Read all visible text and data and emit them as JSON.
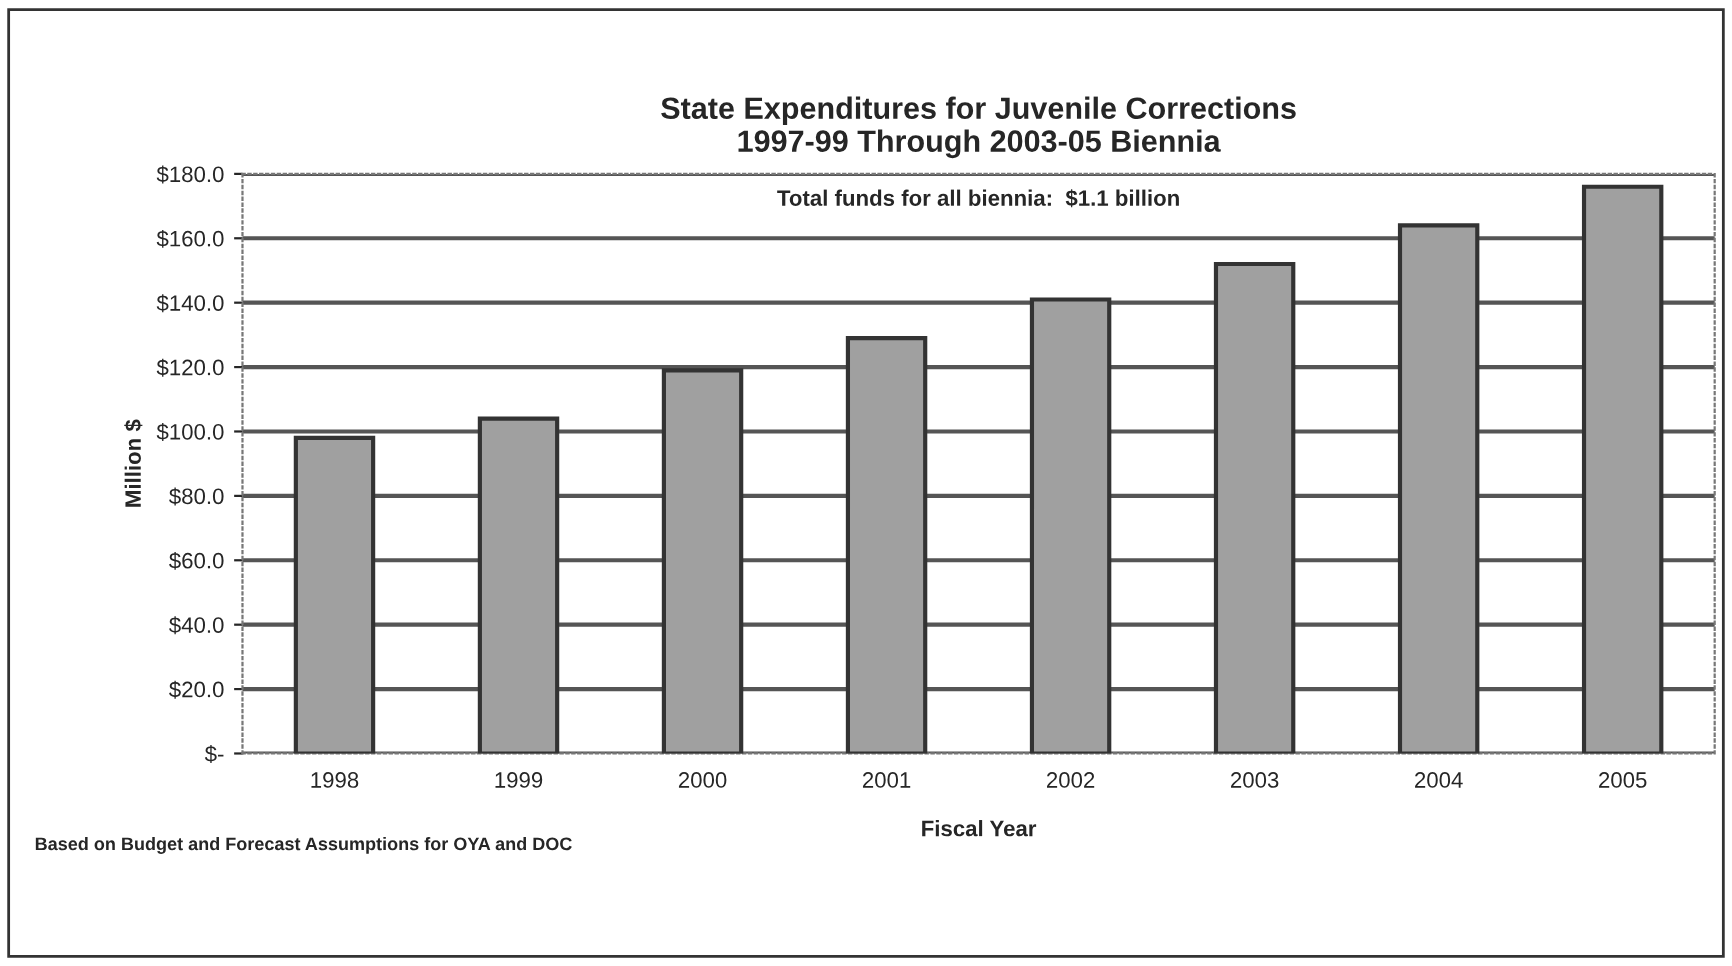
{
  "chart_data": {
    "type": "bar",
    "title": "State Expenditures for Juvenile Corrections\n1997-99 Through 2003-05 Biennia",
    "xlabel": "Fiscal Year",
    "ylabel": "Million $",
    "categories": [
      "1998",
      "1999",
      "2000",
      "2001",
      "2002",
      "2003",
      "2004",
      "2005"
    ],
    "values": [
      98,
      104,
      119,
      129,
      141,
      152,
      164,
      176
    ],
    "color": "#a0a0a0",
    "ylim": [
      0,
      180
    ],
    "yticks": [
      {
        "value": 0,
        "label": "$-"
      },
      {
        "value": 20,
        "label": "$20.0"
      },
      {
        "value": 40,
        "label": "$40.0"
      },
      {
        "value": 60,
        "label": "$60.0"
      },
      {
        "value": 80,
        "label": "$80.0"
      },
      {
        "value": 100,
        "label": "$100.0"
      },
      {
        "value": 120,
        "label": "$120.0"
      },
      {
        "value": 140,
        "label": "$140.0"
      },
      {
        "value": 160,
        "label": "$160.0"
      },
      {
        "value": 180,
        "label": "$180.0"
      }
    ],
    "grid": "y",
    "annotations": [
      "Total funds for all biennia:  $1.1 billion",
      "Based on Budget and Forecast Assumptions for OYA and DOC"
    ]
  }
}
